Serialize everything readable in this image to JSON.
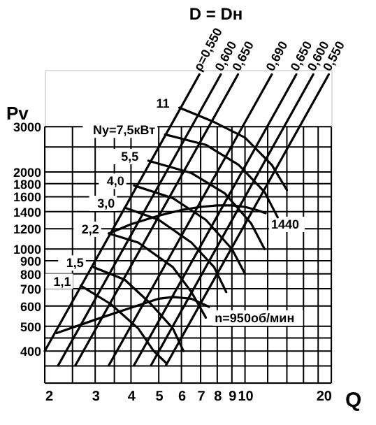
{
  "chart_data": {
    "type": "line",
    "title": "D = Dн",
    "xlabel": "Q",
    "ylabel": "Pv",
    "log": "xy",
    "grid": true,
    "xlim": [
      2,
      20
    ],
    "ylim": [
      300,
      5000
    ],
    "xticks": [
      2,
      {
        "value": 2.5,
        "label": null
      },
      3,
      {
        "value": 3.5,
        "label": null
      },
      4,
      5,
      6,
      7,
      8,
      9,
      10,
      {
        "value": 12,
        "label": null
      },
      {
        "value": 14,
        "label": null
      },
      {
        "value": 16,
        "label": null
      },
      {
        "value": 18,
        "label": null
      },
      20
    ],
    "yticks": [
      {
        "value": 300,
        "label": null
      },
      {
        "value": 350,
        "label": null
      },
      400,
      {
        "value": 450,
        "label": null
      },
      500,
      600,
      700,
      800,
      900,
      1000,
      1200,
      1400,
      1600,
      1800,
      2000,
      {
        "value": 2500,
        "label": null
      },
      3000
    ],
    "series": [
      {
        "name": "1440",
        "color": "#000000",
        "x": [
          3.35,
          4,
          5,
          6,
          7,
          8,
          9,
          10,
          11,
          11.8
        ],
        "values": [
          1150,
          1250,
          1350,
          1420,
          1460,
          1480,
          1480,
          1460,
          1420,
          1380
        ]
      },
      {
        "name": "n=950об/мин",
        "color": "#000000",
        "x": [
          2.2,
          3,
          4,
          5,
          5.6,
          6.5,
          7.5
        ],
        "values": [
          470,
          530,
          590,
          640,
          650,
          640,
          595
        ]
      },
      {
        "name": "11",
        "color": "#000000",
        "x": [
          14,
          12.4,
          10,
          7.8,
          5.9
        ],
        "values": [
          1700,
          2130,
          2720,
          3130,
          3560
        ]
      },
      {
        "name": "Ny=7,5кВт",
        "color": "#000000",
        "x": [
          13,
          11.7,
          9.5,
          7.3,
          5.26
        ],
        "values": [
          1330,
          1670,
          2130,
          2550,
          2800
        ]
      },
      {
        "name": "5,5",
        "color": "#000000",
        "x": [
          11.7,
          10.5,
          8.5,
          6.5,
          4.6
        ],
        "values": [
          1000,
          1260,
          1650,
          1980,
          2210
        ]
      },
      {
        "name": "4,0",
        "color": "#000000",
        "x": [
          10,
          9,
          7.3,
          5.6,
          4.1
        ],
        "values": [
          800,
          1000,
          1300,
          1580,
          1770
        ]
      },
      {
        "name": "3,0",
        "color": "#000000",
        "x": [
          8.6,
          7.8,
          6.5,
          5,
          3.8
        ],
        "values": [
          680,
          850,
          1060,
          1300,
          1450
        ]
      },
      {
        "name": "2,2",
        "color": "#000000",
        "x": [
          7.3,
          6.5,
          5.6,
          4.24,
          3.35
        ],
        "values": [
          540,
          680,
          850,
          1060,
          1150
        ]
      },
      {
        "name": "1,5",
        "color": "#000000",
        "x": [
          6.1,
          5.6,
          4.7,
          3.8,
          2.96
        ],
        "values": [
          400,
          490,
          610,
          760,
          850
        ]
      },
      {
        "name": "1,1",
        "color": "#000000",
        "x": [
          5.3,
          4.8,
          4.24,
          3.4,
          2.67
        ],
        "values": [
          360,
          400,
          490,
          610,
          720
        ]
      },
      {
        "name": "ρ=0,550",
        "color": "#000000",
        "x": [
          2,
          6.93
        ],
        "values": [
          400,
          4800
        ]
      },
      {
        "name": "0,600",
        "color": "#000000",
        "x": [
          2.23,
          8.23
        ],
        "values": [
          352,
          4800
        ]
      },
      {
        "name": "0,650",
        "color": "#000000",
        "x": [
          2.56,
          9.45
        ],
        "values": [
          352,
          4800
        ]
      },
      {
        "name": "0,690",
        "color": "#000000",
        "x": [
          3.35,
          12.4
        ],
        "values": [
          352,
          4800
        ]
      },
      {
        "name": "0,650",
        "color": "#000000",
        "x": [
          4.1,
          15.1
        ],
        "values": [
          352,
          4800
        ]
      },
      {
        "name": "0,600",
        "color": "#000000",
        "x": [
          4.7,
          17.3
        ],
        "values": [
          352,
          4800
        ]
      },
      {
        "name": "0,550",
        "color": "#000000",
        "x": [
          5.3,
          19.6
        ],
        "values": [
          352,
          4800
        ]
      }
    ]
  }
}
